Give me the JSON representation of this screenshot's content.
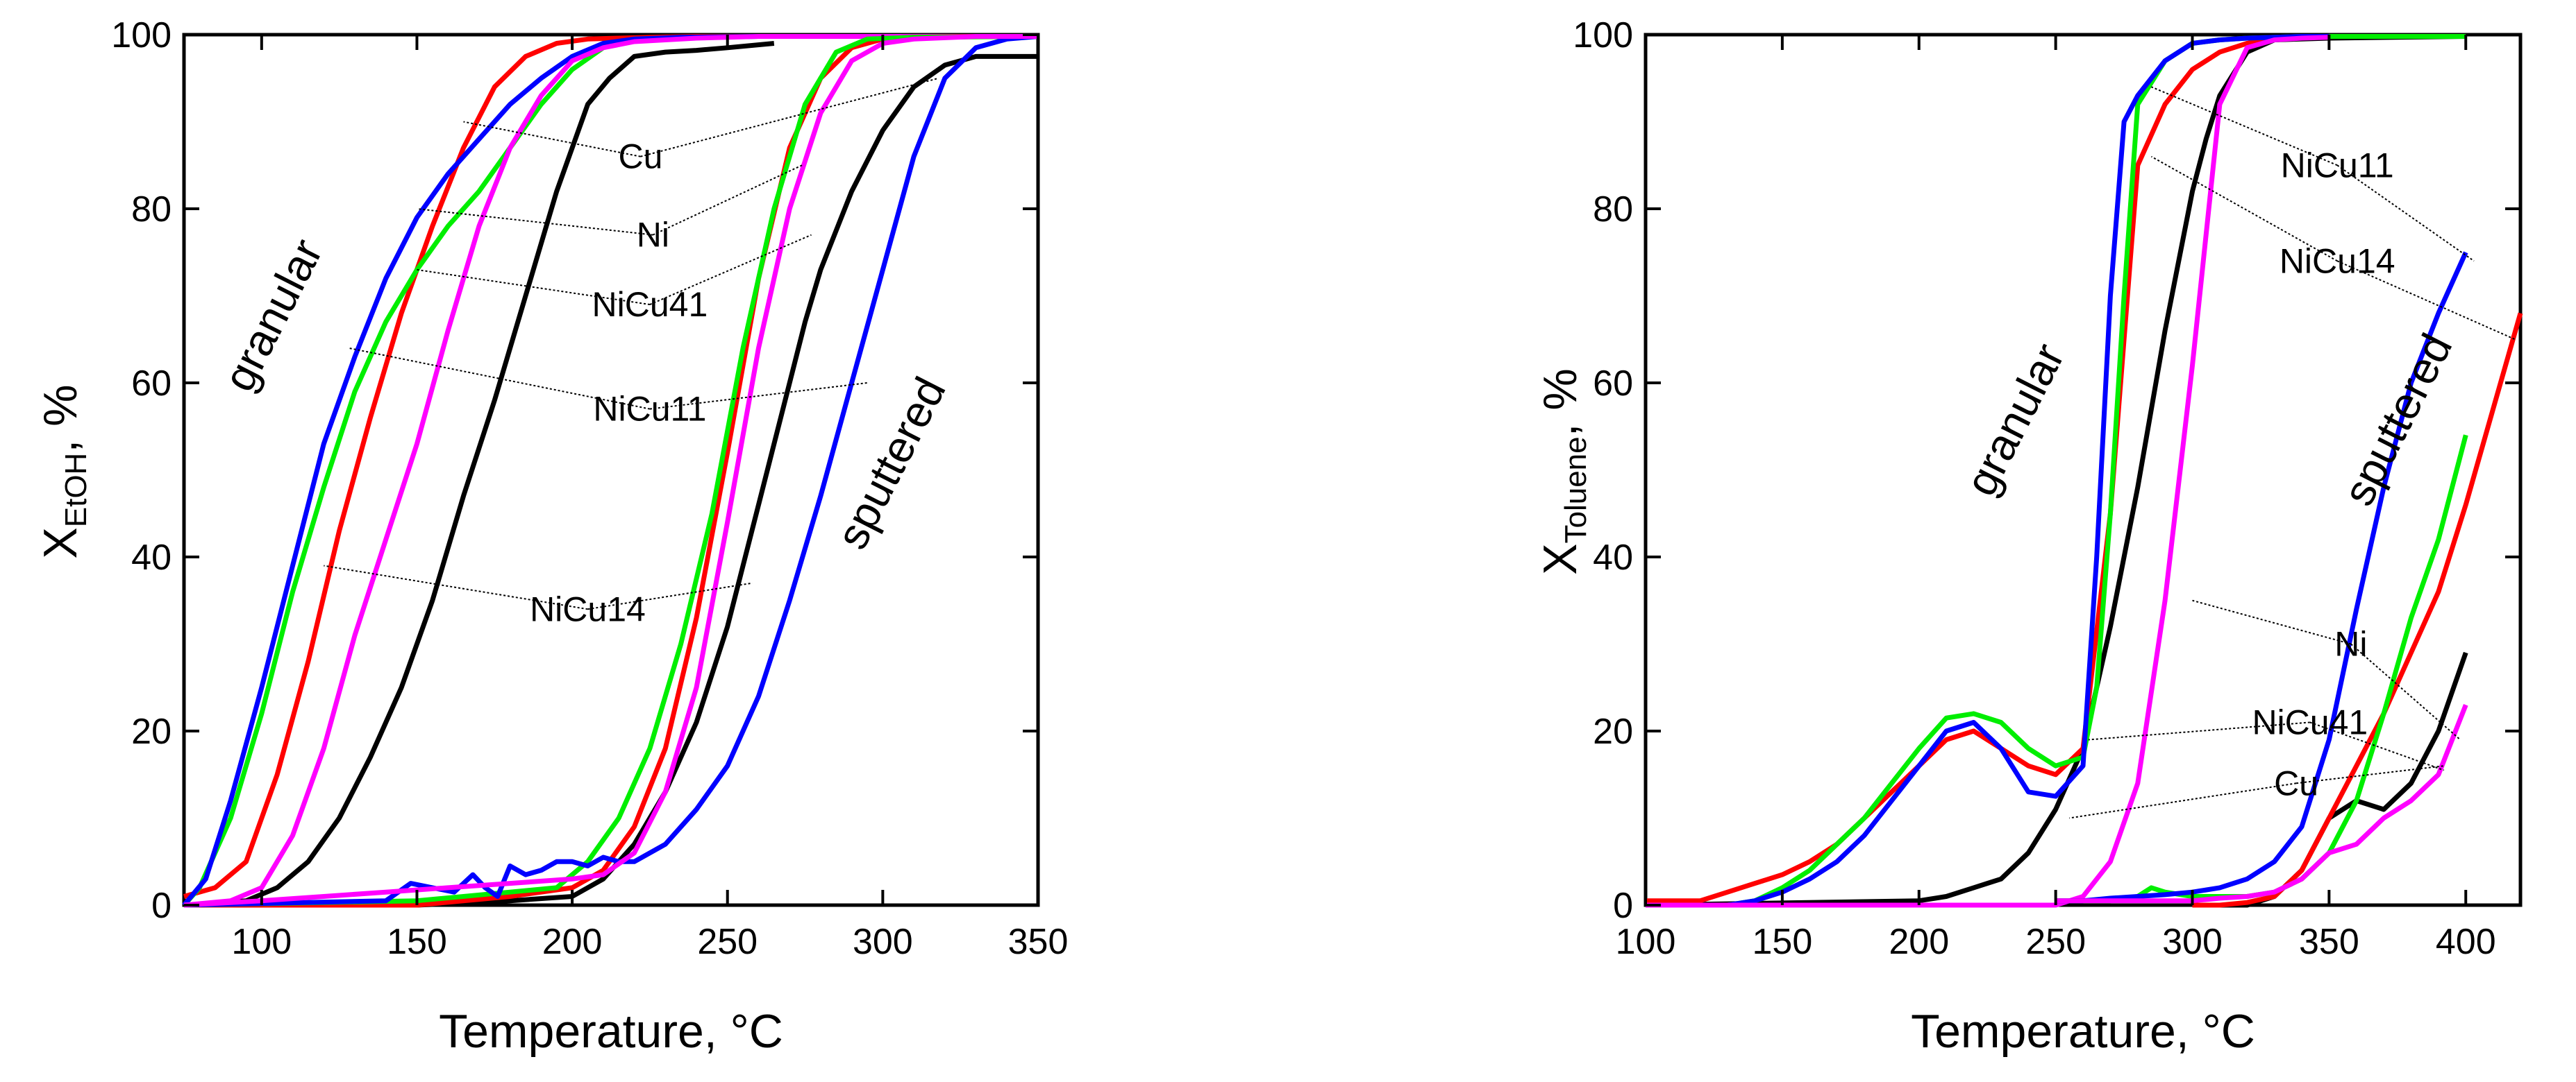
{
  "chart_data": [
    {
      "type": "line",
      "xlabel": "Temperature, °C",
      "ylabel_main": "X",
      "ylabel_sub": "EtOH",
      "ylabel_tail": ", %",
      "xlim": [
        75,
        350
      ],
      "ylim": [
        0,
        100
      ],
      "xticks": [
        100,
        150,
        200,
        250,
        300,
        350
      ],
      "yticks": [
        0,
        20,
        40,
        60,
        80,
        100
      ],
      "series": [
        {
          "name": "Cu granular",
          "color": "#000000",
          "x": [
            75,
            95,
            105,
            115,
            125,
            135,
            145,
            155,
            165,
            175,
            185,
            195,
            205,
            212,
            220,
            230,
            240,
            250,
            265
          ],
          "y": [
            0,
            0.5,
            2,
            5,
            10,
            17,
            25,
            35,
            47,
            58,
            70,
            82,
            92,
            95,
            97.5,
            98,
            98.2,
            98.5,
            99
          ]
        },
        {
          "name": "Ni granular",
          "color": "#ff0000",
          "x": [
            75,
            85,
            95,
            105,
            115,
            125,
            135,
            145,
            155,
            165,
            175,
            185,
            195,
            205,
            215,
            225,
            240,
            260
          ],
          "y": [
            1,
            2,
            5,
            15,
            28,
            43,
            56,
            68,
            78,
            87,
            94,
            97.5,
            99,
            99.5,
            99.6,
            99.7,
            99.8,
            99.8
          ]
        },
        {
          "name": "NiCu41 granular",
          "color": "#00ee00",
          "x": [
            75,
            80,
            90,
            100,
            110,
            120,
            130,
            140,
            150,
            160,
            170,
            180,
            190,
            200,
            210,
            220,
            240,
            260
          ],
          "y": [
            0,
            2,
            10,
            22,
            36,
            48,
            59,
            67,
            73,
            78,
            82,
            87,
            92,
            96,
            98.5,
            99.5,
            99.7,
            99.8
          ]
        },
        {
          "name": "NiCu11 granular",
          "color": "#0000ff",
          "x": [
            75,
            82,
            90,
            100,
            110,
            120,
            130,
            140,
            150,
            160,
            170,
            180,
            190,
            200,
            210,
            220,
            235,
            260,
            300,
            350
          ],
          "y": [
            0,
            3,
            12,
            25,
            39,
            53,
            63,
            72,
            79,
            84,
            88,
            92,
            95,
            97.5,
            99,
            99.5,
            99.7,
            99.8,
            99.8,
            99.8
          ]
        },
        {
          "name": "NiCu14 granular",
          "color": "#ff00ff",
          "x": [
            75,
            90,
            100,
            110,
            120,
            130,
            140,
            150,
            160,
            170,
            180,
            190,
            200,
            210,
            220,
            240,
            260,
            300,
            350
          ],
          "y": [
            0,
            0.5,
            2,
            8,
            18,
            31,
            42,
            53,
            66,
            78,
            87,
            93,
            97,
            98.5,
            99.2,
            99.6,
            99.8,
            99.8,
            99.8
          ]
        },
        {
          "name": "Cu sputtered",
          "color": "#000000",
          "x": [
            75,
            150,
            180,
            200,
            210,
            220,
            230,
            240,
            250,
            260,
            270,
            275,
            280,
            290,
            300,
            310,
            320,
            330,
            340,
            350
          ],
          "y": [
            0,
            0,
            0.5,
            1,
            3,
            7,
            13,
            21,
            32,
            46,
            60,
            67,
            73,
            82,
            89,
            94,
            96.5,
            97.5,
            97.5,
            97.5
          ]
        },
        {
          "name": "Ni sputtered",
          "color": "#ff0000",
          "x": [
            75,
            150,
            180,
            200,
            210,
            220,
            230,
            240,
            250,
            260,
            270,
            280,
            290,
            300,
            310,
            330,
            350
          ],
          "y": [
            0,
            0,
            1,
            2,
            4,
            9,
            18,
            33,
            52,
            72,
            87,
            95,
            98.5,
            99.5,
            99.7,
            99.8,
            99.8
          ]
        },
        {
          "name": "NiCu41 sputtered",
          "color": "#00ee00",
          "x": [
            75,
            150,
            180,
            195,
            205,
            215,
            225,
            235,
            245,
            255,
            265,
            275,
            285,
            295,
            310,
            350
          ],
          "y": [
            0,
            0.5,
            1.5,
            2,
            5,
            10,
            18,
            30,
            45,
            64,
            80,
            92,
            98,
            99.5,
            99.7,
            99.8
          ]
        },
        {
          "name": "NiCu11 sputtered",
          "color": "#0000ff",
          "x": [
            75,
            140,
            148,
            155,
            162,
            168,
            172,
            176,
            180,
            185,
            190,
            195,
            200,
            205,
            210,
            215,
            220,
            230,
            240,
            250,
            260,
            270,
            280,
            290,
            300,
            310,
            320,
            330,
            340,
            350
          ],
          "y": [
            0,
            0.5,
            2.5,
            2,
            1.5,
            3.5,
            2,
            1,
            4.5,
            3.5,
            4,
            5,
            5,
            4.5,
            5.5,
            5,
            5,
            7,
            11,
            16,
            24,
            35,
            47,
            60,
            73,
            86,
            95,
            98.5,
            99.5,
            99.8
          ]
        },
        {
          "name": "NiCu14 sputtered",
          "color": "#ff00ff",
          "x": [
            75,
            100,
            120,
            140,
            160,
            180,
            200,
            210,
            220,
            230,
            240,
            250,
            260,
            270,
            280,
            290,
            300,
            310,
            330,
            350
          ],
          "y": [
            0,
            0.5,
            1,
            1.5,
            2,
            2.5,
            3,
            3.5,
            6,
            13,
            25,
            44,
            64,
            80,
            91,
            97,
            99,
            99.5,
            99.8,
            99.8
          ]
        }
      ],
      "annotations": [
        {
          "text": "Cu",
          "x": 222,
          "y": 86
        },
        {
          "text": "Ni",
          "x": 226,
          "y": 77
        },
        {
          "text": "NiCu41",
          "x": 225,
          "y": 69
        },
        {
          "text": "NiCu11",
          "x": 225,
          "y": 57
        },
        {
          "text": "NiCu14",
          "x": 205,
          "y": 34
        },
        {
          "text": "granular",
          "x": 108,
          "y": 67
        },
        {
          "text": "sputtered",
          "x": 307,
          "y": 50
        }
      ]
    },
    {
      "type": "line",
      "xlabel": "Temperature, °C",
      "ylabel_main": "X",
      "ylabel_sub": "Toluene",
      "ylabel_tail": ", %",
      "xlim": [
        100,
        420
      ],
      "ylim": [
        0,
        100
      ],
      "xticks": [
        100,
        150,
        200,
        250,
        300,
        350,
        400
      ],
      "yticks": [
        0,
        20,
        40,
        60,
        80,
        100
      ],
      "series": [
        {
          "name": "Cu granular",
          "color": "#000000",
          "x": [
            100,
            200,
            210,
            220,
            230,
            240,
            250,
            260,
            270,
            280,
            290,
            300,
            305,
            310,
            320,
            330,
            350,
            400
          ],
          "y": [
            0,
            0.5,
            1,
            2,
            3,
            6,
            11,
            18,
            32,
            48,
            66,
            82,
            88,
            93,
            98,
            99.4,
            99.6,
            99.8
          ]
        },
        {
          "name": "Ni granular",
          "color": "#ff0000",
          "x": [
            100,
            120,
            130,
            140,
            150,
            160,
            170,
            180,
            190,
            200,
            210,
            220,
            230,
            240,
            250,
            260,
            270,
            280,
            290,
            300,
            310,
            320,
            330,
            340,
            350
          ],
          "y": [
            0.5,
            0.5,
            1.5,
            2.5,
            3.5,
            5,
            7,
            10,
            13,
            16,
            19,
            20,
            18,
            16,
            15,
            18,
            45,
            85,
            92,
            96,
            98,
            99,
            99.5,
            99.7,
            99.8
          ]
        },
        {
          "name": "NiCu41 granular",
          "color": "#00ee00",
          "x": [
            130,
            140,
            150,
            160,
            170,
            180,
            190,
            200,
            210,
            220,
            230,
            240,
            250,
            260,
            265,
            270,
            275,
            280,
            290,
            300,
            310,
            320,
            330,
            340,
            350,
            400
          ],
          "y": [
            0,
            0.5,
            2,
            4,
            7,
            10,
            14,
            18,
            21.5,
            22,
            21,
            18,
            16,
            17,
            25,
            45,
            70,
            92,
            97,
            99,
            99.4,
            99.6,
            99.7,
            99.8,
            99.8,
            99.8
          ]
        },
        {
          "name": "NiCu11 granular",
          "color": "#0000ff",
          "x": [
            130,
            140,
            150,
            160,
            170,
            180,
            190,
            200,
            210,
            220,
            230,
            240,
            250,
            260,
            265,
            270,
            275,
            280,
            290,
            300,
            310,
            320,
            330,
            340,
            350
          ],
          "y": [
            0,
            0.5,
            1.5,
            3,
            5,
            8,
            12,
            16,
            20,
            21,
            18,
            13,
            12.5,
            16,
            40,
            70,
            90,
            93,
            97,
            99,
            99.4,
            99.6,
            99.7,
            99.8,
            99.8
          ]
        },
        {
          "name": "NiCu14 granular",
          "color": "#ff00ff",
          "x": [
            100,
            250,
            260,
            270,
            280,
            290,
            300,
            310,
            320,
            330,
            340,
            350
          ],
          "y": [
            0,
            0,
            1,
            5,
            14,
            35,
            62,
            92,
            98.5,
            99.4,
            99.6,
            99.7
          ]
        },
        {
          "name": "Cu sputtered",
          "color": "#000000",
          "x": [
            300,
            310,
            320,
            330,
            340,
            350,
            360,
            370,
            380,
            390,
            400
          ],
          "y": [
            0,
            0,
            0,
            1,
            4,
            10,
            12,
            11,
            14,
            20,
            29
          ]
        },
        {
          "name": "Ni sputtered",
          "color": "#ff0000",
          "x": [
            300,
            310,
            320,
            330,
            340,
            350,
            360,
            370,
            380,
            390,
            400,
            410,
            420
          ],
          "y": [
            0,
            0,
            0.3,
            1,
            4,
            10,
            16,
            22,
            29,
            36,
            46,
            57,
            68
          ]
        },
        {
          "name": "NiCu41 sputtered",
          "color": "#00ee00",
          "x": [
            250,
            260,
            270,
            280,
            285,
            290,
            300,
            310,
            320,
            330,
            340,
            350,
            360,
            370,
            380,
            390,
            400
          ],
          "y": [
            0.5,
            0.5,
            0.5,
            1,
            2,
            1.5,
            1,
            1,
            1,
            1.5,
            3,
            6,
            12,
            22,
            33,
            42,
            54
          ]
        },
        {
          "name": "NiCu11 sputtered",
          "color": "#0000ff",
          "x": [
            250,
            260,
            270,
            280,
            290,
            300,
            310,
            320,
            330,
            340,
            350,
            360,
            370,
            380,
            390,
            400
          ],
          "y": [
            0.5,
            0.5,
            0.8,
            1,
            1.2,
            1.5,
            2,
            3,
            5,
            9,
            19,
            34,
            48,
            60,
            68,
            75
          ]
        },
        {
          "name": "NiCu14 sputtered",
          "color": "#ff00ff",
          "x": [
            250,
            300,
            310,
            320,
            330,
            340,
            350,
            360,
            370,
            380,
            390,
            400
          ],
          "y": [
            0.5,
            0.5,
            0.8,
            1,
            1.5,
            3,
            6,
            7,
            10,
            12,
            15,
            23
          ]
        }
      ],
      "annotations": [
        {
          "text": "NiCu11",
          "x": 353,
          "y": 85
        },
        {
          "text": "NiCu14",
          "x": 353,
          "y": 74
        },
        {
          "text": "Ni",
          "x": 358,
          "y": 30
        },
        {
          "text": "NiCu41",
          "x": 343,
          "y": 21
        },
        {
          "text": "Cu",
          "x": 338,
          "y": 14
        },
        {
          "text": "granular",
          "x": 240,
          "y": 55
        },
        {
          "text": "sputtered",
          "x": 380,
          "y": 55
        }
      ]
    }
  ]
}
